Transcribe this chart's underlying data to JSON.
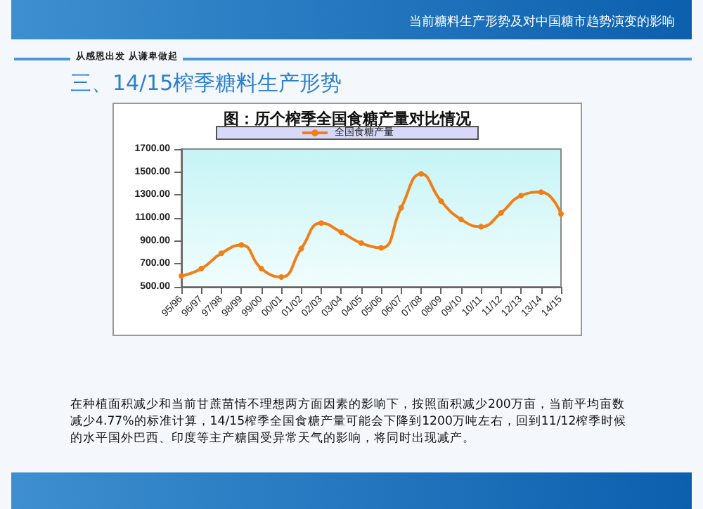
{
  "chart_data": {
    "type": "line",
    "title": "图：历个榨季全国食糖产量对比情况",
    "annotations": [
      "当前糖料生产形势及对中国糖市趋势演变的影响",
      "从感恩出发  从谦卑做起",
      "三、14/15榨季糖料生产形势",
      "在种植面积减少和当前甘蔗苗情不理想两方面因素的影响下，按照面积减少200万亩，当前平均亩数减少4.77%的标准计算，14/15榨季全国食糖产量可能会下降到1200万吨左右，回到11/12榨季时候的水平国外巴西、印度等主产糖国受异常天气的影响，将同时出现减产。"
    ],
    "categories": [
      "95/96",
      "96/97",
      "97/98",
      "98/99",
      "99/00",
      "00/01",
      "01/02",
      "02/03",
      "03/04",
      "04/05",
      "05/06",
      "06/07",
      "07/08",
      "08/09",
      "09/10",
      "10/11",
      "11/12",
      "12/13",
      "13/14",
      "14/15"
    ],
    "series": [
      {
        "name": "全国食糖产量",
        "color": "#f07f17",
        "values": [
          595,
          659,
          792,
          865,
          659,
          586,
          833,
          1056,
          976,
          881,
          840,
          1189,
          1484,
          1246,
          1087,
          1024,
          1144,
          1294,
          1325,
          1135
        ]
      }
    ],
    "ylim": [
      500,
      1700
    ],
    "yticks": [
      {
        "value": 500,
        "label": "500.00"
      },
      {
        "value": 700,
        "label": "700.00"
      },
      {
        "value": 900,
        "label": "900.00"
      },
      {
        "value": 1100,
        "label": "1100.00"
      },
      {
        "value": 1300,
        "label": "1300.00"
      },
      {
        "value": 1500,
        "label": "1500.00"
      },
      {
        "value": 1700,
        "label": "1700.00"
      }
    ],
    "legend": "top",
    "marker": "circle",
    "line_style": "solid"
  }
}
